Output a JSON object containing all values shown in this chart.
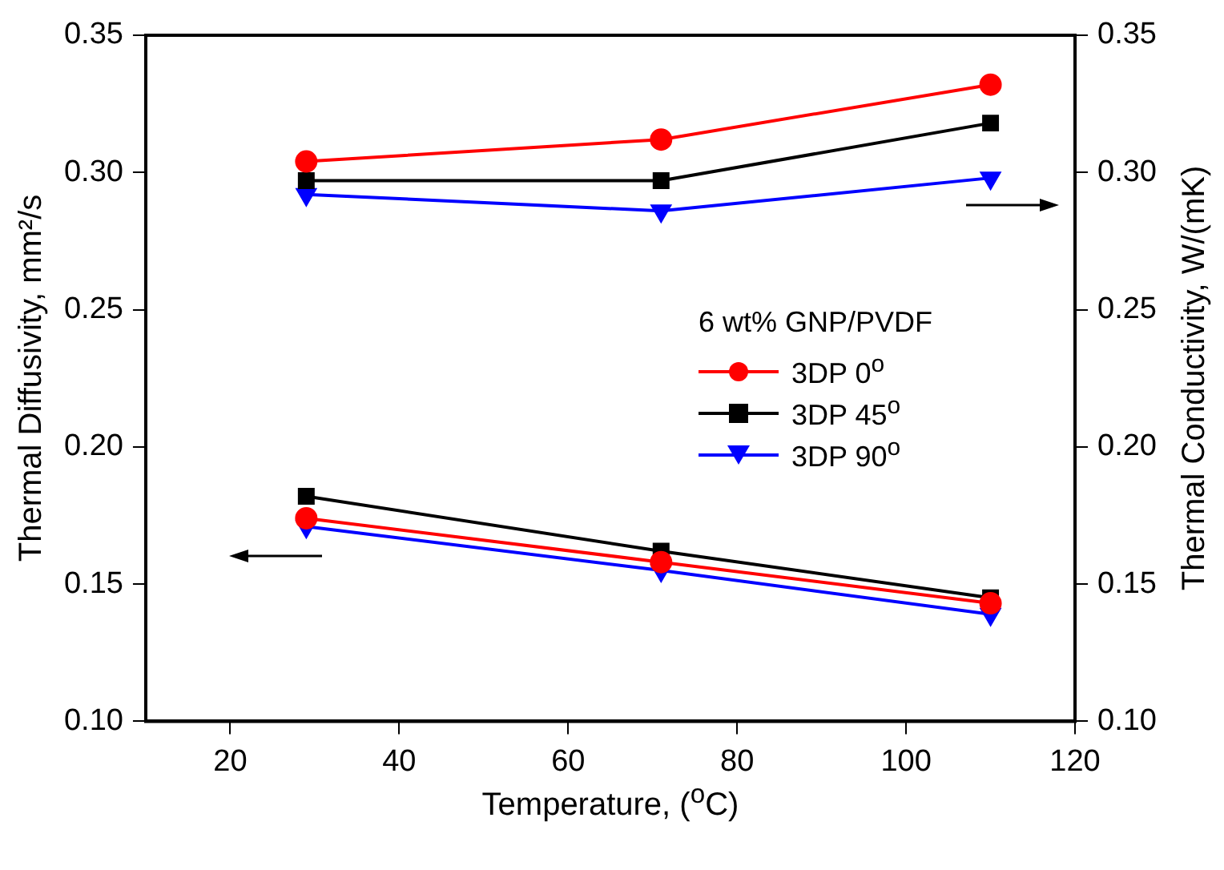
{
  "chart_data": {
    "type": "line",
    "xlabel": "Temperature, ($^{o}$C)",
    "ylabel": "Thermal Diffusivity, mm²/s",
    "y2label": "Thermal Conductivity, W/(mK)",
    "legend_title": "6 wt% GNP/PVDF",
    "legend": "right",
    "grid": false,
    "x": [
      29,
      71,
      110
    ],
    "xlim": [
      10,
      120
    ],
    "xticks": [
      20,
      40,
      60,
      80,
      100,
      120
    ],
    "ylim": [
      0.1,
      0.35
    ],
    "yticks": [
      {
        "value": 0.1,
        "label": "0.10"
      },
      {
        "value": 0.15,
        "label": "0.15"
      },
      {
        "value": 0.2,
        "label": "0.20"
      },
      {
        "value": 0.25,
        "label": "0.25"
      },
      {
        "value": 0.3,
        "label": "0.30"
      },
      {
        "value": 0.35,
        "label": "0.35"
      }
    ],
    "y2lim": [
      0.1,
      0.35
    ],
    "y2ticks": [
      {
        "value": 0.1,
        "label": "0.10"
      },
      {
        "value": 0.15,
        "label": "0.15"
      },
      {
        "value": 0.2,
        "label": "0.20"
      },
      {
        "value": 0.25,
        "label": "0.25"
      },
      {
        "value": 0.3,
        "label": "0.30"
      },
      {
        "value": 0.35,
        "label": "0.35"
      }
    ],
    "series": [
      {
        "name": "3DP 0$^{o}$",
        "color": "#ff0000",
        "marker": "circle",
        "values": [
          0.174,
          0.158,
          0.143
        ]
      },
      {
        "name": "3DP 45$^{o}$",
        "color": "#000000",
        "marker": "square",
        "values": [
          0.182,
          0.162,
          0.145
        ]
      },
      {
        "name": "3DP 90$^{o}$",
        "color": "#0000ff",
        "marker": "triangle",
        "values": [
          0.171,
          0.155,
          0.139
        ]
      },
      {
        "color": "#ff0000",
        "marker": "circle",
        "axis": "y2",
        "values": [
          0.304,
          0.312,
          0.332
        ]
      },
      {
        "color": "#000000",
        "marker": "square",
        "axis": "y2",
        "values": [
          0.297,
          0.297,
          0.318
        ]
      },
      {
        "color": "#0000ff",
        "marker": "triangle",
        "axis": "y2",
        "values": [
          0.292,
          0.286,
          0.298
        ]
      }
    ]
  }
}
